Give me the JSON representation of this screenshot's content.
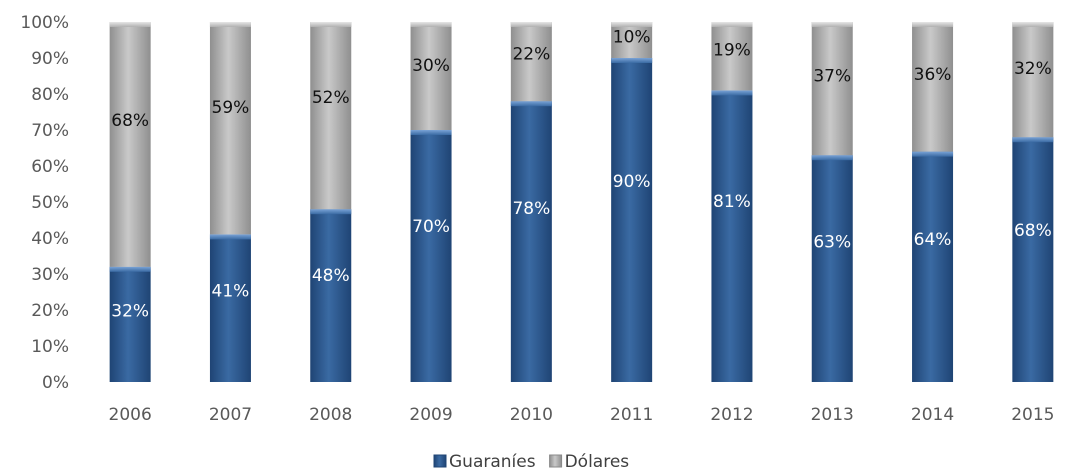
{
  "chart_data": {
    "type": "bar",
    "stacked": true,
    "percent": true,
    "categories": [
      "2006",
      "2007",
      "2008",
      "2009",
      "2010",
      "2011",
      "2012",
      "2013",
      "2014",
      "2015"
    ],
    "series": [
      {
        "name": "Guaraníes",
        "values": [
          32,
          41,
          48,
          70,
          78,
          90,
          81,
          63,
          64,
          68
        ],
        "labels": [
          "32%",
          "41%",
          "48%",
          "70%",
          "78%",
          "90%",
          "81%",
          "63%",
          "64%",
          "68%"
        ],
        "color": "#2e5a8e",
        "label_color": "#ffffff"
      },
      {
        "name": "Dólares",
        "values": [
          68,
          59,
          52,
          30,
          22,
          10,
          19,
          37,
          36,
          32
        ],
        "labels": [
          "68%",
          "59%",
          "52%",
          "30%",
          "22%",
          "10%",
          "19%",
          "37%",
          "36%",
          "32%"
        ],
        "color": "#b3b3b3",
        "label_color": "#111111"
      }
    ],
    "ylim": [
      0,
      100
    ],
    "yticks": [
      "0%",
      "10%",
      "20%",
      "30%",
      "40%",
      "50%",
      "60%",
      "70%",
      "80%",
      "90%",
      "100%"
    ],
    "legend": "bottom",
    "grid": false
  }
}
